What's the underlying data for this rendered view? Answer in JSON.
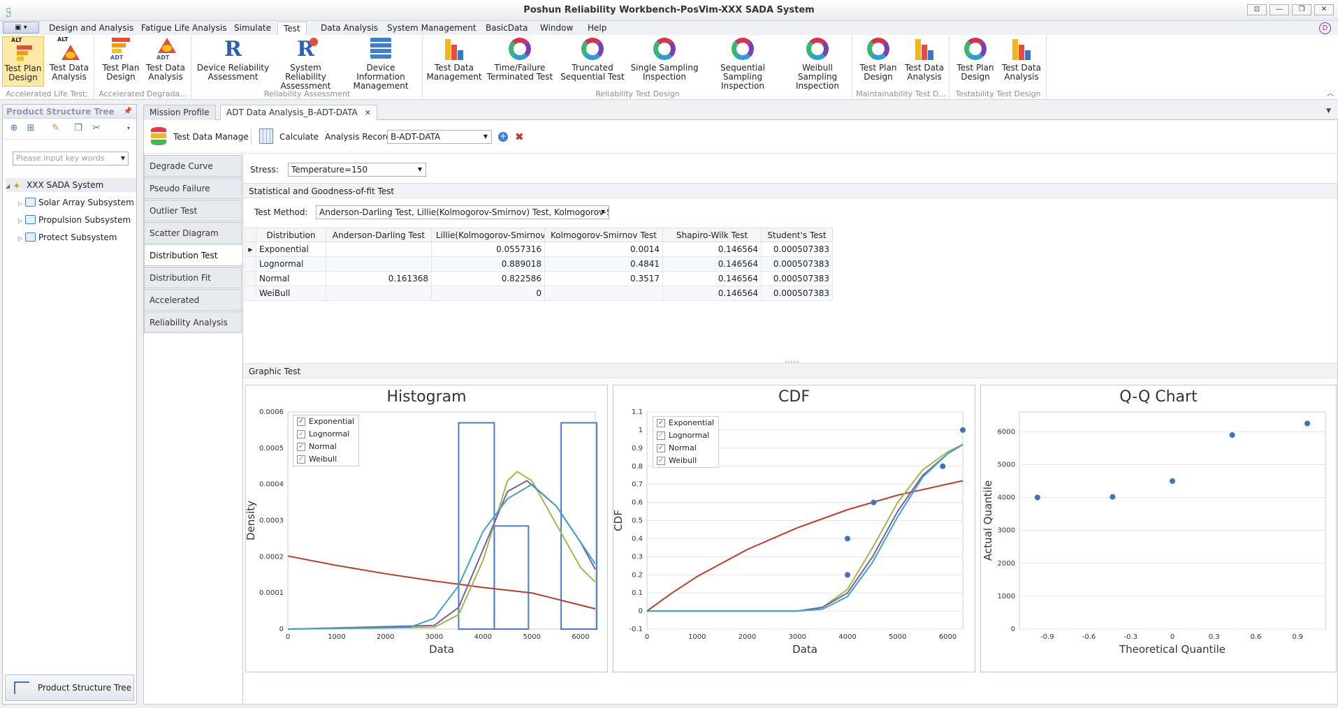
{
  "window": {
    "title": "Poshun Reliability Workbench-PosVim-XXX SADA System",
    "buttons": [
      "⊡",
      "—",
      "❐",
      "✕"
    ]
  },
  "menu": {
    "tabs": [
      "Design and Analysis",
      "Fatigue Life Analysis",
      "Simulate",
      "Test",
      "Data Analysis",
      "System Management",
      "BasicData",
      "Window",
      "Help"
    ],
    "active": "Test"
  },
  "ribbon": {
    "groups": [
      {
        "name": "Accelerated Life Test;",
        "badge": "ALT",
        "buttons": [
          "Test Plan\nDesign",
          "Test Data\nAnalysis"
        ]
      },
      {
        "name": "Accelerated Degrada...",
        "badge": "ADT",
        "buttons": [
          "Test Plan\nDesign",
          "Test Data\nAnalysis"
        ]
      },
      {
        "name": "Reliability Assessment",
        "buttons": [
          "Device Reliability\nAssessment",
          "System Reliability\nAssessment",
          "Device Information\nManagement"
        ]
      },
      {
        "name": "Reliability Test Design",
        "buttons": [
          "Test Data\nManagement",
          "Time/Failure\nTerminated Test",
          "Truncated\nSequential Test",
          "Single Sampling\nInspection",
          "Sequential Sampling\nInspection",
          "Weibull Sampling\nInspection"
        ]
      },
      {
        "name": "Maintainability Test D...",
        "buttons": [
          "Test Plan\nDesign",
          "Test Data\nAnalysis"
        ]
      },
      {
        "name": "Testability Test Design",
        "buttons": [
          "Test Plan\nDesign",
          "Test Data\nAnalysis"
        ]
      }
    ]
  },
  "left_panel": {
    "title": "Product Structure Tree",
    "search_placeholder": "Please input key words",
    "root": "XXX SADA System",
    "children": [
      "Solar Array Subsystem",
      "Propulsion Subsystem",
      "Protect Subsystem"
    ],
    "bottom_tab": "Product Structure Tree"
  },
  "doc_tabs": [
    "Mission Profile",
    "ADT Data Analysis_B-ADT-DATA"
  ],
  "toolbar": {
    "test_data_manage": "Test Data Manage",
    "calculate": "Calculate",
    "analysis_record_label": "Analysis Record",
    "analysis_record_value": "B-ADT-DATA"
  },
  "side_tabs": [
    "Degrade Curve Analysis",
    "Pseudo Failure",
    "Outlier Test",
    "Scatter Diagram",
    "Distribution Test",
    "Distribution Fit",
    "Accelerated Parameter",
    "Reliability Analysis"
  ],
  "active_side_tab": "Distribution Test",
  "stress": {
    "label": "Stress:",
    "value": "Temperature=150"
  },
  "section_stat": "Statistical and Goodness-of-fit Test",
  "test_method": {
    "label": "Test Method:",
    "value": "Anderson-Darling Test, Lillie(Kolmogorov-Smirnov) Test, Kolmogorov-S..."
  },
  "grid": {
    "columns": [
      "Distribution",
      "Anderson-Darling Test",
      "Lillie(Kolmogorov-Smirnov...",
      "Kolmogorov-Smirnov Test",
      "Shapiro-Wilk Test",
      "Student's Test"
    ],
    "rows": [
      [
        "Exponential",
        "",
        "0.0557316",
        "0.0014",
        "0.146564",
        "0.000507383"
      ],
      [
        "Lognormal",
        "",
        "0.889018",
        "0.4841",
        "0.146564",
        "0.000507383"
      ],
      [
        "Normal",
        "0.161368",
        "0.822586",
        "0.3517",
        "0.146564",
        "0.000507383"
      ],
      [
        "WeiBull",
        "",
        "0",
        "",
        "0.146564",
        "0.000507383"
      ]
    ]
  },
  "section_graphic": "Graphic Test",
  "colors": {
    "exponential": "#c0392b",
    "lognormal": "#9cbb45",
    "normal": "#7a5ca8",
    "weibull": "#3fa3c6",
    "hist": "#4a7cc9",
    "point": "#3d74b8"
  },
  "chart_data": [
    {
      "type": "bar",
      "title": "Histogram",
      "xlabel": "Data",
      "ylabel": "Density",
      "xlim": [
        0,
        6300
      ],
      "ylim": [
        0,
        0.0006
      ],
      "xticks": [
        "0",
        "1000",
        "2000",
        "3000",
        "4000",
        "5000",
        "6000"
      ],
      "yticks": [
        "0",
        "0.0001",
        "0.0002",
        "0.0003",
        "0.0004",
        "0.0005",
        "0.0006"
      ],
      "bins": [
        {
          "x0": 3500,
          "x1": 4230,
          "density": 0.00057
        },
        {
          "x0": 4230,
          "x1": 4930,
          "density": 0.000285
        },
        {
          "x0": 4930,
          "x1": 5600,
          "density": 0.0
        },
        {
          "x0": 5600,
          "x1": 6330,
          "density": 0.00057
        }
      ],
      "legend": [
        "Exponential",
        "Lognormal",
        "Normal",
        "Weibull"
      ],
      "curves": {
        "Exponential": {
          "x": [
            0,
            1000,
            2000,
            3000,
            4000,
            5000,
            6300
          ],
          "y": [
            0.000202,
            0.000176,
            0.000153,
            0.000133,
            0.000115,
            0.0001,
            5.6e-05
          ]
        },
        "Lognormal": {
          "x": [
            0,
            3000,
            3500,
            4000,
            4500,
            4700,
            5000,
            5500,
            6000,
            6300
          ],
          "y": [
            0,
            5e-06,
            4e-05,
            0.00019,
            0.00041,
            0.000435,
            0.00041,
            0.00029,
            0.00017,
            0.00013
          ]
        },
        "Normal": {
          "x": [
            0,
            3000,
            3500,
            4000,
            4500,
            4900,
            5500,
            6000,
            6300
          ],
          "y": [
            0,
            1e-05,
            6e-05,
            0.00022,
            0.00038,
            0.00041,
            0.00034,
            0.00024,
            0.000165
          ]
        },
        "Weibull": {
          "x": [
            0,
            2500,
            3000,
            3500,
            4000,
            4500,
            5000,
            5500,
            6000,
            6300
          ],
          "y": [
            0,
            5e-06,
            3e-05,
            0.00012,
            0.00027,
            0.00036,
            0.0004,
            0.00034,
            0.00024,
            0.00018
          ]
        }
      }
    },
    {
      "type": "line",
      "title": "CDF",
      "xlabel": "Data",
      "ylabel": "CDF",
      "xlim": [
        0,
        6300
      ],
      "ylim": [
        -0.1,
        1.1
      ],
      "xticks": [
        "0",
        "1000",
        "2000",
        "3000",
        "4000",
        "5000",
        "6000"
      ],
      "yticks": [
        "-0.1",
        "0",
        "0.1",
        "0.2",
        "0.3",
        "0.4",
        "0.5",
        "0.6",
        "0.7",
        "0.8",
        "0.9",
        "1",
        "1.1"
      ],
      "legend": [
        "Exponential",
        "Lognormal",
        "Normal",
        "Weibull"
      ],
      "curves": {
        "Exponential": {
          "x": [
            0,
            500,
            1000,
            2000,
            3000,
            4000,
            5000,
            6300
          ],
          "y": [
            0,
            0.1,
            0.19,
            0.34,
            0.46,
            0.56,
            0.64,
            0.72
          ]
        },
        "Lognormal": {
          "x": [
            0,
            3000,
            3500,
            4000,
            4500,
            5000,
            5500,
            6000,
            6300
          ],
          "y": [
            0,
            0.0,
            0.02,
            0.12,
            0.35,
            0.6,
            0.78,
            0.88,
            0.92
          ]
        },
        "Normal": {
          "x": [
            0,
            3000,
            3500,
            4000,
            4500,
            5000,
            5500,
            6000,
            6300
          ],
          "y": [
            0,
            0.0,
            0.02,
            0.1,
            0.3,
            0.55,
            0.75,
            0.87,
            0.92
          ]
        },
        "Weibull": {
          "x": [
            0,
            3000,
            3500,
            4000,
            4500,
            5000,
            5500,
            6000,
            6300
          ],
          "y": [
            0,
            0.0,
            0.01,
            0.08,
            0.27,
            0.52,
            0.74,
            0.87,
            0.92
          ]
        }
      },
      "points": {
        "x": [
          4000,
          4000,
          4520,
          5900,
          6300
        ],
        "y": [
          0.2,
          0.4,
          0.6,
          0.8,
          1.0
        ]
      }
    },
    {
      "type": "scatter",
      "title": "Q-Q Chart",
      "xlabel": "Theoretical Quantile",
      "ylabel": "Actual Quantile",
      "xlim": [
        -1.1,
        1.1
      ],
      "ylim": [
        0,
        6600
      ],
      "xticks": [
        "-0.9",
        "-0.6",
        "-0.3",
        "0",
        "0.3",
        "0.6",
        "0.9"
      ],
      "yticks": [
        "0",
        "1000",
        "2000",
        "3000",
        "4000",
        "5000",
        "6000"
      ],
      "points": {
        "x": [
          -0.97,
          -0.43,
          0,
          0.43,
          0.97
        ],
        "y": [
          4000,
          4020,
          4500,
          5900,
          6250
        ]
      }
    }
  ]
}
